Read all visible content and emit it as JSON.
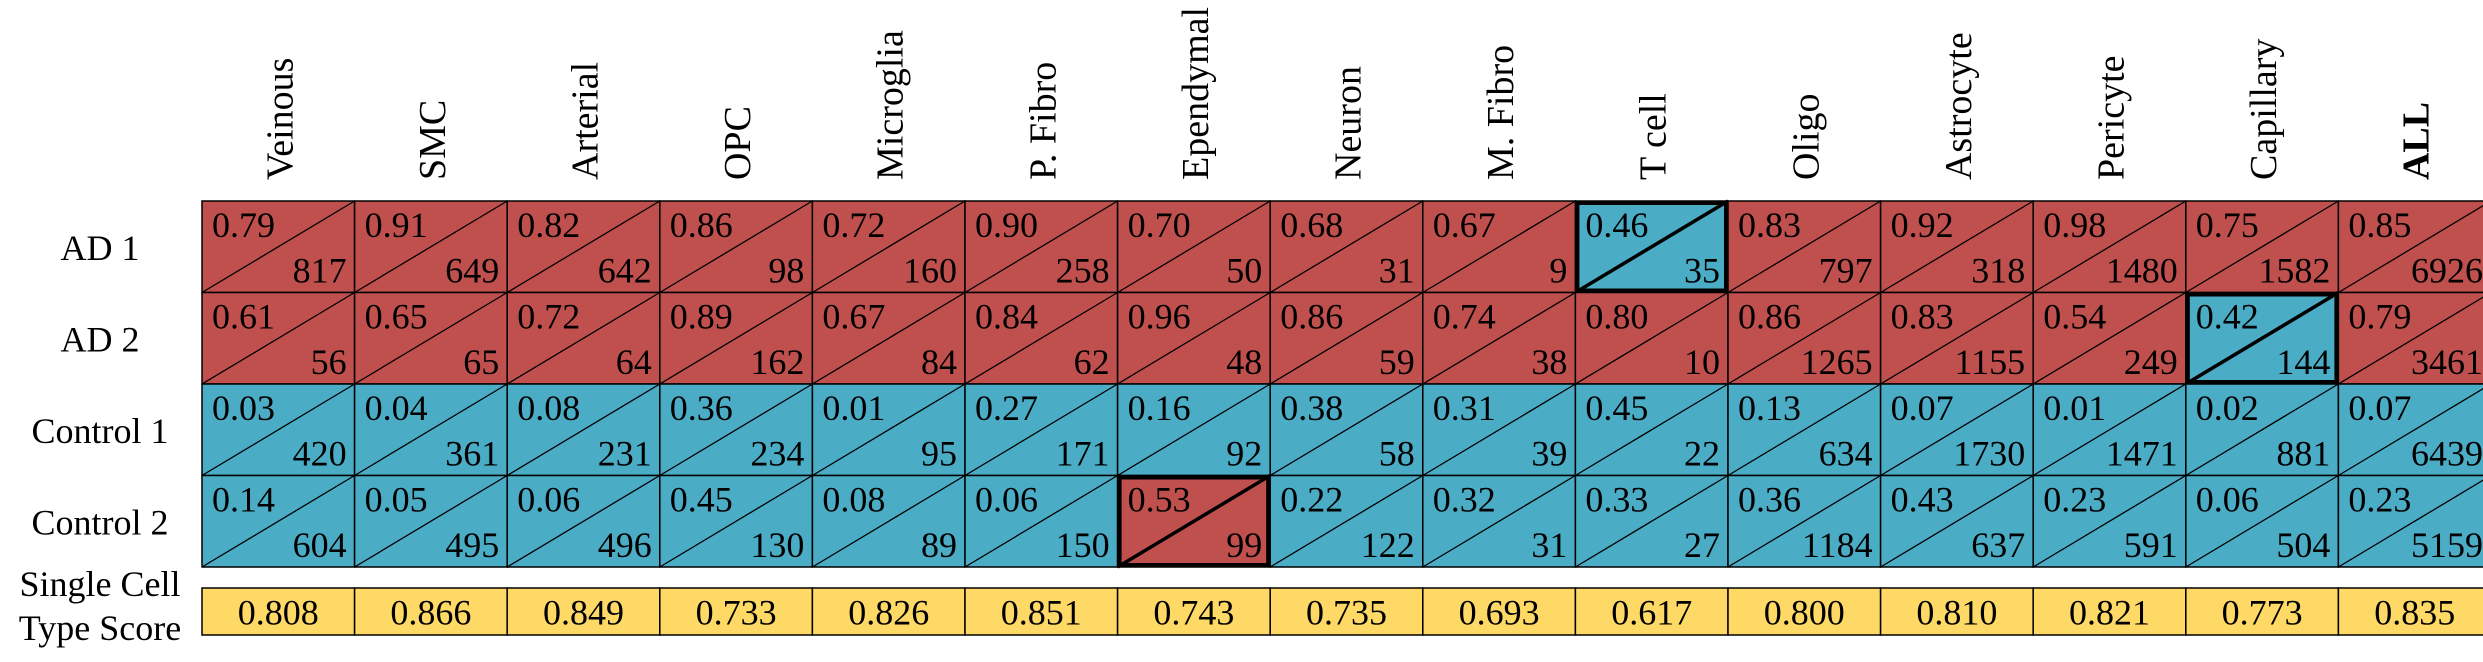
{
  "colors": {
    "high": "#c0504d",
    "low": "#4bacc6",
    "summary": "#ffd966",
    "border": "#000000"
  },
  "chart_data": {
    "type": "table",
    "columns": [
      "Veinous",
      "SMC",
      "Arterial",
      "OPC",
      "Microglia",
      "P. Fibro",
      "Ependymal",
      "Neuron",
      "M. Fibro",
      "T cell",
      "Oligo",
      "Astrocyte",
      "Pericyte",
      "Capillary",
      "ALL"
    ],
    "bold_columns": [
      "ALL"
    ],
    "rows": [
      {
        "label": "AD 1",
        "scores": [
          "0.79",
          "0.91",
          "0.82",
          "0.86",
          "0.72",
          "0.90",
          "0.70",
          "0.68",
          "0.67",
          "0.46",
          "0.83",
          "0.92",
          "0.98",
          "0.75",
          "0.85"
        ],
        "counts": [
          "817",
          "649",
          "642",
          "98",
          "160",
          "258",
          "50",
          "31",
          "9",
          "35",
          "797",
          "318",
          "1480",
          "1582",
          "6926"
        ]
      },
      {
        "label": "AD 2",
        "scores": [
          "0.61",
          "0.65",
          "0.72",
          "0.89",
          "0.67",
          "0.84",
          "0.96",
          "0.86",
          "0.74",
          "0.80",
          "0.86",
          "0.83",
          "0.54",
          "0.42",
          "0.79"
        ],
        "counts": [
          "56",
          "65",
          "64",
          "162",
          "84",
          "62",
          "48",
          "59",
          "38",
          "10",
          "1265",
          "1155",
          "249",
          "144",
          "3461"
        ]
      },
      {
        "label": "Control 1",
        "scores": [
          "0.03",
          "0.04",
          "0.08",
          "0.36",
          "0.01",
          "0.27",
          "0.16",
          "0.38",
          "0.31",
          "0.45",
          "0.13",
          "0.07",
          "0.01",
          "0.02",
          "0.07"
        ],
        "counts": [
          "420",
          "361",
          "231",
          "234",
          "95",
          "171",
          "92",
          "58",
          "39",
          "22",
          "634",
          "1730",
          "1471",
          "881",
          "6439"
        ]
      },
      {
        "label": "Control 2",
        "scores": [
          "0.14",
          "0.05",
          "0.06",
          "0.45",
          "0.08",
          "0.06",
          "0.53",
          "0.22",
          "0.32",
          "0.33",
          "0.36",
          "0.43",
          "0.23",
          "0.06",
          "0.23"
        ],
        "counts": [
          "604",
          "495",
          "496",
          "130",
          "89",
          "150",
          "99",
          "122",
          "31",
          "27",
          "1184",
          "637",
          "591",
          "504",
          "5159"
        ]
      }
    ],
    "threshold": 0.5,
    "summary_row": {
      "label_lines": [
        "Single Cell",
        "Type Score"
      ],
      "values": [
        "0.808",
        "0.866",
        "0.849",
        "0.733",
        "0.826",
        "0.851",
        "0.743",
        "0.735",
        "0.693",
        "0.617",
        "0.800",
        "0.810",
        "0.821",
        "0.773",
        "0.835"
      ]
    }
  }
}
